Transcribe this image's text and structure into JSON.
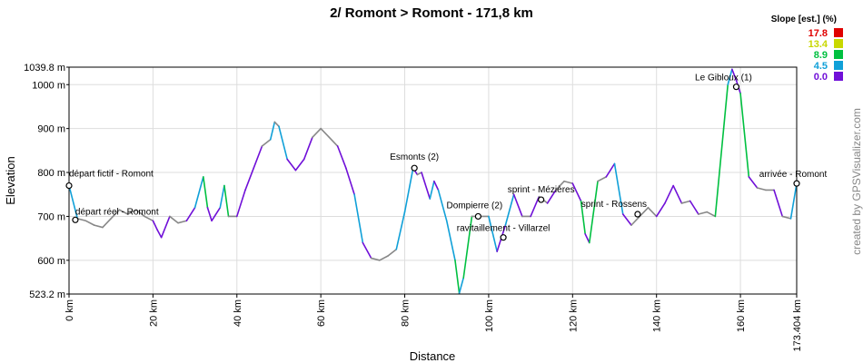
{
  "chart_data": {
    "type": "line",
    "title": "2/ Romont > Romont - 171,8 km",
    "xlabel": "Distance",
    "ylabel": "Elevation",
    "xlim": [
      0,
      173.404
    ],
    "ylim": [
      523.2,
      1039.8
    ],
    "x_ticks": [
      {
        "value": 0,
        "label": "0 km"
      },
      {
        "value": 20,
        "label": "20 km"
      },
      {
        "value": 40,
        "label": "40 km"
      },
      {
        "value": 60,
        "label": "60 km"
      },
      {
        "value": 80,
        "label": "80 km"
      },
      {
        "value": 100,
        "label": "100 km"
      },
      {
        "value": 120,
        "label": "120 km"
      },
      {
        "value": 140,
        "label": "140 km"
      },
      {
        "value": 160,
        "label": "160 km"
      },
      {
        "value": 173.404,
        "label": "173.404 km"
      }
    ],
    "y_ticks": [
      {
        "value": 523.2,
        "label": "523.2 m"
      },
      {
        "value": 600,
        "label": "600 m"
      },
      {
        "value": 700,
        "label": "700 m"
      },
      {
        "value": 800,
        "label": "800 m"
      },
      {
        "value": 900,
        "label": "900 m"
      },
      {
        "value": 1000,
        "label": "1000 m"
      },
      {
        "value": 1039.8,
        "label": "1039.8 m"
      }
    ],
    "grid": true,
    "series": [
      {
        "x": [
          0,
          2,
          4,
          6,
          8,
          10,
          12,
          14,
          16,
          18,
          20,
          21,
          22,
          24,
          26,
          28,
          30,
          32,
          33,
          34,
          36,
          37,
          38,
          40,
          42,
          44,
          46,
          48,
          49,
          50,
          52,
          54,
          56,
          58,
          60,
          62,
          64,
          66,
          68,
          70,
          72,
          74,
          76,
          78,
          80,
          82,
          83,
          84,
          86,
          87,
          88,
          90,
          92,
          93,
          94,
          96,
          98,
          100,
          102,
          103,
          104,
          106,
          108,
          110,
          112,
          114,
          116,
          118,
          120,
          122,
          123,
          124,
          126,
          128,
          130,
          132,
          134,
          136,
          138,
          140,
          142,
          144,
          146,
          148,
          150,
          152,
          154,
          156,
          157,
          158,
          159,
          160,
          162,
          164,
          166,
          168,
          170,
          172,
          173.404
        ],
        "y": [
          770,
          695,
          690,
          680,
          675,
          695,
          715,
          705,
          715,
          700,
          690,
          670,
          652,
          700,
          685,
          690,
          720,
          790,
          720,
          690,
          720,
          770,
          700,
          700,
          760,
          810,
          860,
          875,
          915,
          905,
          830,
          805,
          830,
          880,
          900,
          880,
          860,
          810,
          750,
          640,
          605,
          600,
          610,
          625,
          710,
          810,
          795,
          800,
          740,
          780,
          760,
          690,
          600,
          525,
          560,
          700,
          700,
          700,
          620,
          650,
          680,
          750,
          700,
          700,
          745,
          730,
          760,
          780,
          775,
          735,
          660,
          640,
          780,
          790,
          820,
          705,
          680,
          700,
          720,
          700,
          730,
          770,
          730,
          735,
          705,
          710,
          700,
          900,
          1000,
          1035,
          1010,
          980,
          790,
          765,
          760,
          760,
          700,
          695,
          775
        ]
      }
    ],
    "waypoints": [
      {
        "x": 0,
        "y": 770,
        "label": "départ fictif - Romont"
      },
      {
        "x": 1.5,
        "y": 692,
        "label": "départ réel - Romont"
      },
      {
        "x": 82.3,
        "y": 810,
        "label": "Esmonts (2)"
      },
      {
        "x": 97.5,
        "y": 700,
        "label": "Dompierre (2)"
      },
      {
        "x": 103.5,
        "y": 652,
        "label": "ravitaillement - Villarzel"
      },
      {
        "x": 112.5,
        "y": 738,
        "label": "sprint - Mézières"
      },
      {
        "x": 135.5,
        "y": 705,
        "label": "sprint - Rossens"
      },
      {
        "x": 159,
        "y": 995,
        "label": "Le Gibloux (1)"
      },
      {
        "x": 173.404,
        "y": 775,
        "label": "arrivée - Romont"
      }
    ],
    "legend": {
      "title": "Slope [est.] (%)",
      "placement": "top-right",
      "entries": [
        {
          "label": "17.8",
          "color": "#e00000"
        },
        {
          "label": "13.4",
          "color": "#c8d800"
        },
        {
          "label": "8.9",
          "color": "#00c040"
        },
        {
          "label": "4.5",
          "color": "#10a0d8"
        },
        {
          "label": "0.0",
          "color": "#7010d8"
        }
      ]
    }
  },
  "credit": "created by GPSVisualizer.com",
  "colors": {
    "flat": "#888888",
    "grid": "#dddddd",
    "frame": "#000000"
  }
}
